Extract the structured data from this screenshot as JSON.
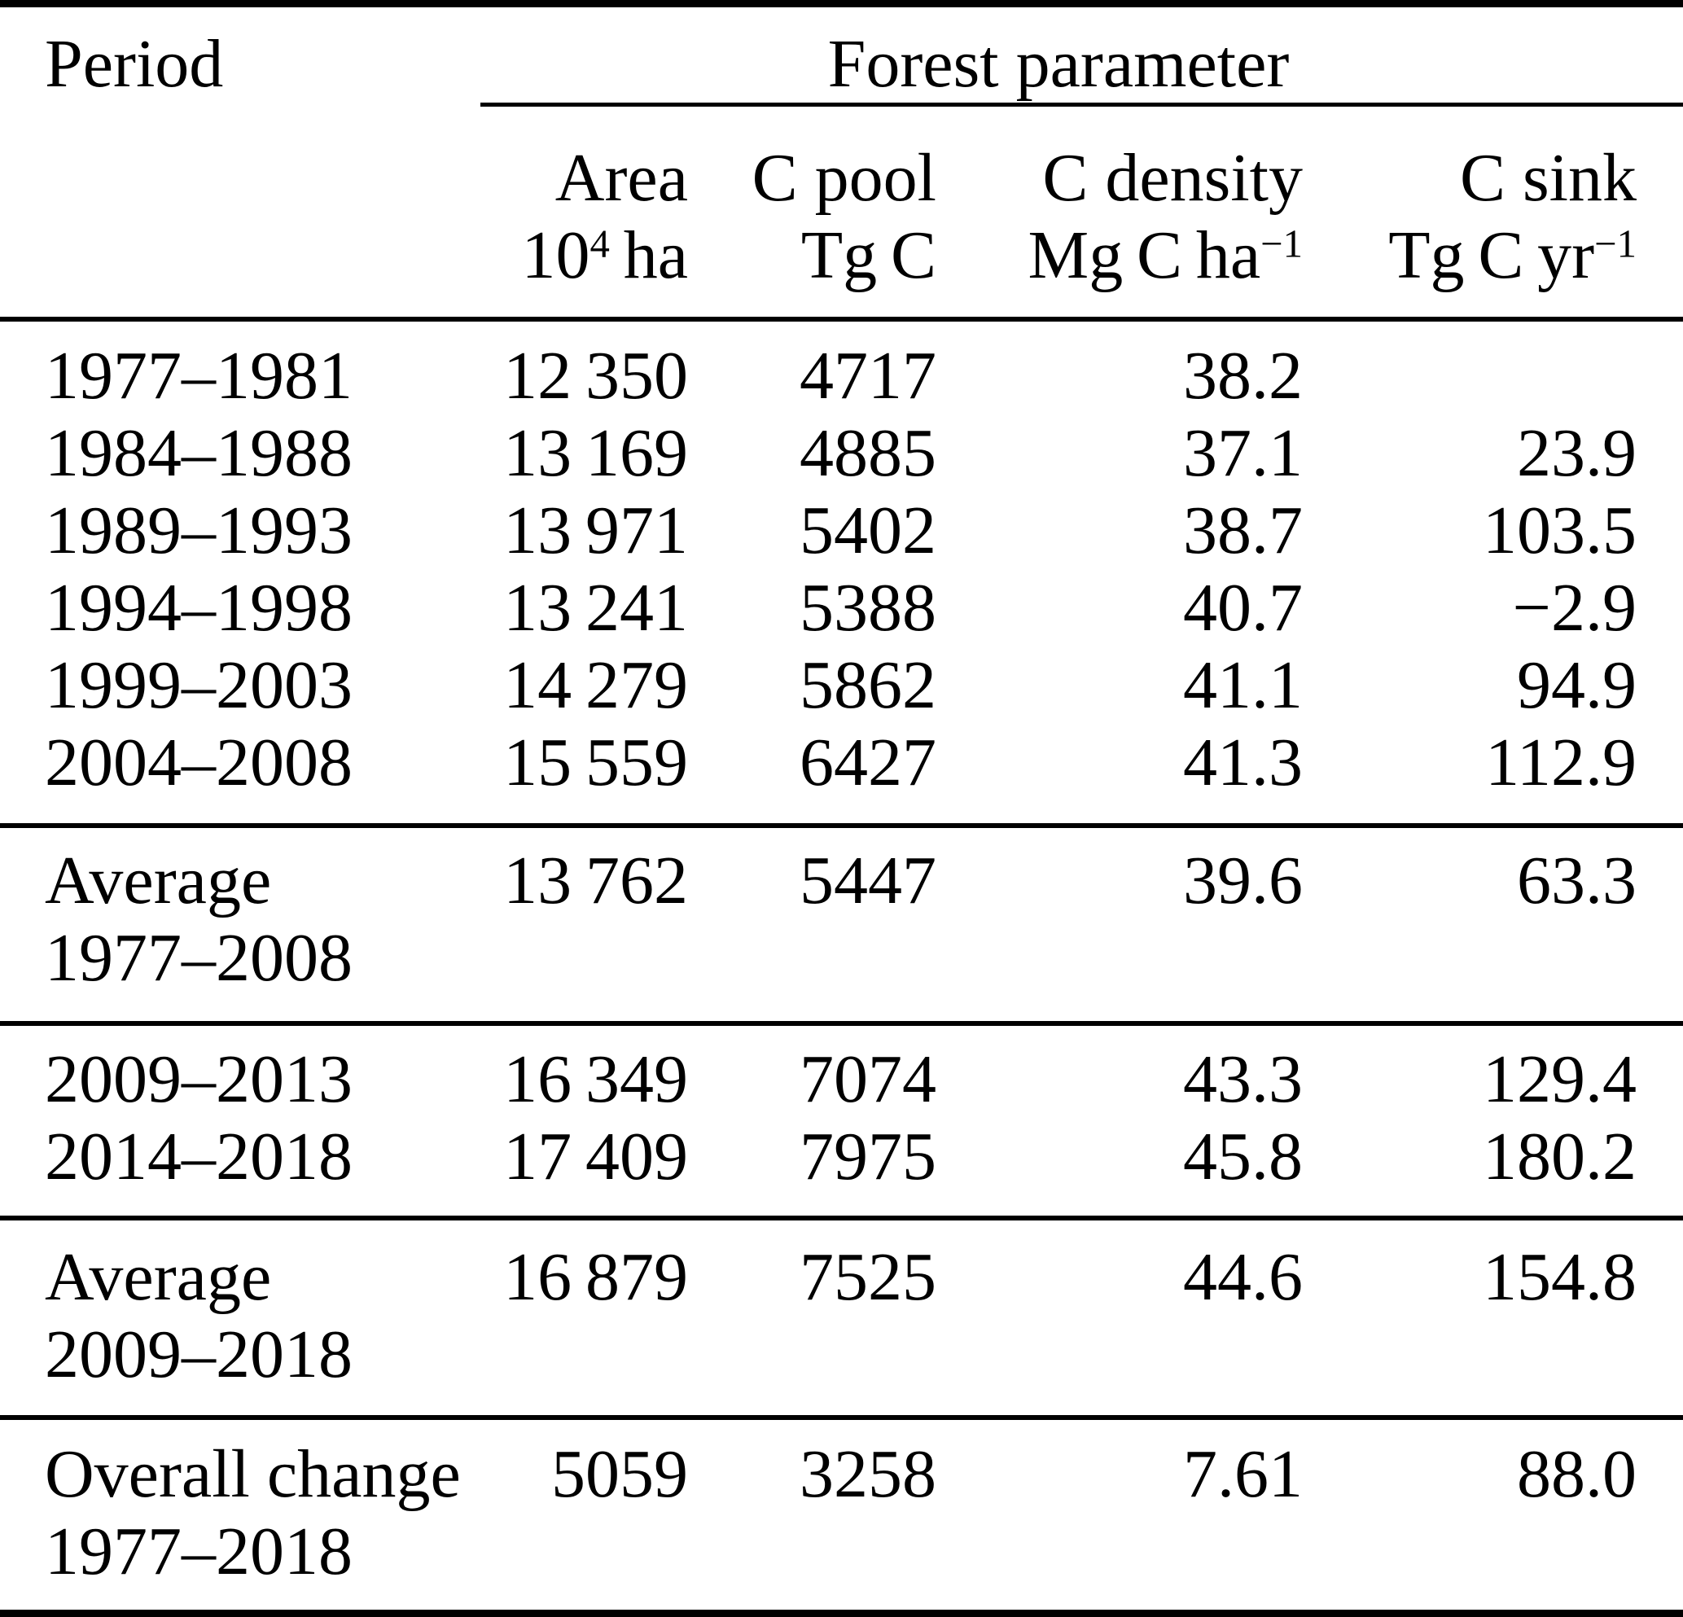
{
  "table": {
    "col1_header": "Period",
    "group_header": "Forest parameter",
    "columns": [
      {
        "name": "Area",
        "unit_base": "10",
        "unit_sup": "4",
        "unit_rest": " ha"
      },
      {
        "name": "C pool",
        "unit_base": "Tg C"
      },
      {
        "name": "C density",
        "unit_base": "Mg C ha",
        "unit_sup": "−1"
      },
      {
        "name": "C sink",
        "unit_base": "Tg C yr",
        "unit_sup": "−1"
      }
    ],
    "sections": [
      {
        "rows": [
          {
            "p1": "1977–1981",
            "area": "12 350",
            "pool": "4717",
            "density": "38.2",
            "sink": ""
          },
          {
            "p1": "1984–1988",
            "area": "13 169",
            "pool": "4885",
            "density": "37.1",
            "sink": "23.9"
          },
          {
            "p1": "1989–1993",
            "area": "13 971",
            "pool": "5402",
            "density": "38.7",
            "sink": "103.5"
          },
          {
            "p1": "1994–1998",
            "area": "13 241",
            "pool": "5388",
            "density": "40.7",
            "sink": "−2.9"
          },
          {
            "p1": "1999–2003",
            "area": "14 279",
            "pool": "5862",
            "density": "41.1",
            "sink": "94.9"
          },
          {
            "p1": "2004–2008",
            "area": "15 559",
            "pool": "6427",
            "density": "41.3",
            "sink": "112.9"
          }
        ]
      },
      {
        "rows": [
          {
            "p1": "Average",
            "p2": "1977–2008",
            "area": "13 762",
            "pool": "5447",
            "density": "39.6",
            "sink": "63.3"
          }
        ]
      },
      {
        "rows": [
          {
            "p1": "2009–2013",
            "area": "16 349",
            "pool": "7074",
            "density": "43.3",
            "sink": "129.4"
          },
          {
            "p1": "2014–2018",
            "area": "17 409",
            "pool": "7975",
            "density": "45.8",
            "sink": "180.2"
          }
        ]
      },
      {
        "rows": [
          {
            "p1": "Average",
            "p2": "2009–2018",
            "area": "16 879",
            "pool": "7525",
            "density": "44.6",
            "sink": "154.8"
          }
        ]
      },
      {
        "rows": [
          {
            "p1": "Overall change",
            "p2": "1977–2018",
            "area": "5059",
            "pool": "3258",
            "density": "7.61",
            "sink": "88.0"
          }
        ]
      }
    ]
  }
}
